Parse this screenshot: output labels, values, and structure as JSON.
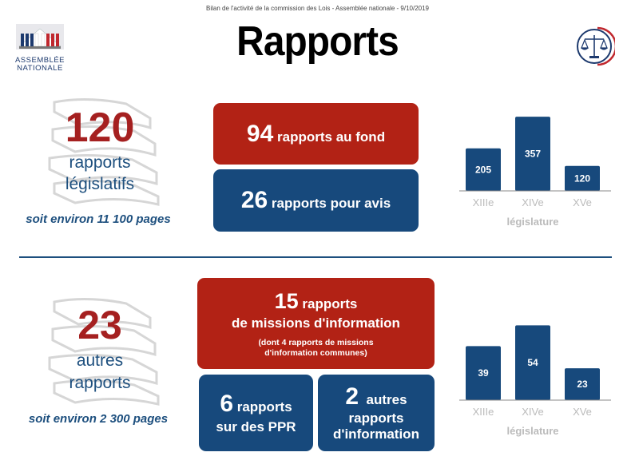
{
  "header": {
    "subtitle": "Bilan de l'activité de la commission des Lois - Assemblée nationale - 9/10/2019",
    "title": "Rapports"
  },
  "logo": {
    "line1": "ASSEMBLÉE",
    "line2": "NATIONALE"
  },
  "section1": {
    "big_number": "120",
    "label_line1": "rapports",
    "label_line2": "législatifs",
    "pages": "soit environ 11 100 pages",
    "box_red": {
      "number": "94",
      "text": " rapports au fond"
    },
    "box_blue": {
      "number": "26",
      "text": " rapports pour avis"
    }
  },
  "section2": {
    "big_number": "23",
    "label_line1": "autres",
    "label_line2": "rapports",
    "pages": "soit environ 2 300 pages",
    "box_red": {
      "number": "15",
      "text": " rapports",
      "line2": "de missions d'information",
      "note_line1": "(dont 4 rapports de missions",
      "note_line2": "d'information communes)"
    },
    "box_blue_left": {
      "number": "6",
      "text": " rapports",
      "line2": "sur des PPR"
    },
    "box_blue_right": {
      "number": "2",
      "text": "  autres",
      "line2": "rapports",
      "line3": "d'information"
    }
  },
  "colors": {
    "red": "#b22215",
    "blue": "#17497c",
    "grey": "#bbbbbb"
  },
  "chart_data": [
    {
      "type": "bar",
      "categories": [
        "XIIIe",
        "XIVe",
        "XVe"
      ],
      "values": [
        205,
        357,
        120
      ],
      "xlabel": "législature",
      "ylim": [
        0,
        400
      ],
      "grid": false
    },
    {
      "type": "bar",
      "categories": [
        "XIIIe",
        "XIVe",
        "XVe"
      ],
      "values": [
        39,
        54,
        23
      ],
      "xlabel": "législature",
      "ylim": [
        0,
        60
      ],
      "grid": false
    }
  ]
}
